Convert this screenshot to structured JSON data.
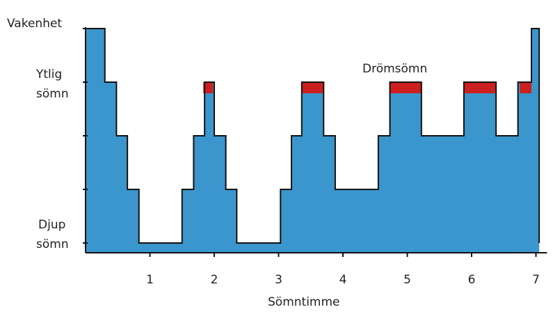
{
  "chart_data": {
    "type": "area",
    "title": "",
    "xlabel": "Sömntimme",
    "ylabel": "",
    "xlim": [
      0,
      7.15
    ],
    "x_ticks": [
      {
        "value": 1,
        "label": "1"
      },
      {
        "value": 2,
        "label": "2"
      },
      {
        "value": 3,
        "label": "3"
      },
      {
        "value": 4,
        "label": "4"
      },
      {
        "value": 5,
        "label": "5"
      },
      {
        "value": 6,
        "label": "6"
      },
      {
        "value": 7,
        "label": "7"
      }
    ],
    "y_levels": {
      "wake": 4,
      "light": 3,
      "stage2": 2,
      "stage3": 1,
      "deep": 0
    },
    "y_labels": {
      "wake": "Vakenhet",
      "light_line1": "Ytlig",
      "light_line2": "sömn",
      "deep_line1": "Djup",
      "deep_line2": "sömn"
    },
    "annotation": "Drömsömn",
    "series": [
      {
        "points": [
          [
            0,
            4
          ],
          [
            0.3,
            4
          ],
          [
            0.3,
            3
          ],
          [
            0.48,
            3
          ],
          [
            0.48,
            2
          ],
          [
            0.65,
            2
          ],
          [
            0.65,
            1
          ],
          [
            0.83,
            1
          ],
          [
            0.83,
            0
          ],
          [
            1.5,
            0
          ],
          [
            1.5,
            1
          ],
          [
            1.68,
            1
          ],
          [
            1.68,
            2
          ],
          [
            1.85,
            2
          ],
          [
            1.85,
            3
          ],
          [
            2.0,
            3
          ],
          [
            2.0,
            2
          ],
          [
            2.18,
            2
          ],
          [
            2.18,
            1
          ],
          [
            2.35,
            1
          ],
          [
            2.35,
            0
          ],
          [
            3.03,
            0
          ],
          [
            3.03,
            1
          ],
          [
            3.2,
            1
          ],
          [
            3.2,
            2
          ],
          [
            3.36,
            2
          ],
          [
            3.36,
            3
          ],
          [
            3.7,
            3
          ],
          [
            3.7,
            2
          ],
          [
            3.88,
            2
          ],
          [
            3.88,
            1
          ],
          [
            4.55,
            1
          ],
          [
            4.55,
            2
          ],
          [
            4.73,
            2
          ],
          [
            4.73,
            3
          ],
          [
            5.22,
            3
          ],
          [
            5.22,
            2
          ],
          [
            5.88,
            2
          ],
          [
            5.88,
            3
          ],
          [
            6.38,
            3
          ],
          [
            6.38,
            2
          ],
          [
            6.72,
            2
          ],
          [
            6.72,
            3
          ],
          [
            6.93,
            3
          ],
          [
            6.93,
            4
          ],
          [
            7.05,
            4
          ],
          [
            7.05,
            0
          ]
        ]
      }
    ],
    "rem_periods": [
      [
        1.83,
        1.98
      ],
      [
        3.36,
        3.7
      ],
      [
        4.73,
        5.22
      ],
      [
        5.88,
        6.38
      ],
      [
        6.75,
        6.93
      ]
    ],
    "colors": {
      "fill": "#3a96cc",
      "rem": "#cc1f1f",
      "line": "#111111"
    }
  }
}
